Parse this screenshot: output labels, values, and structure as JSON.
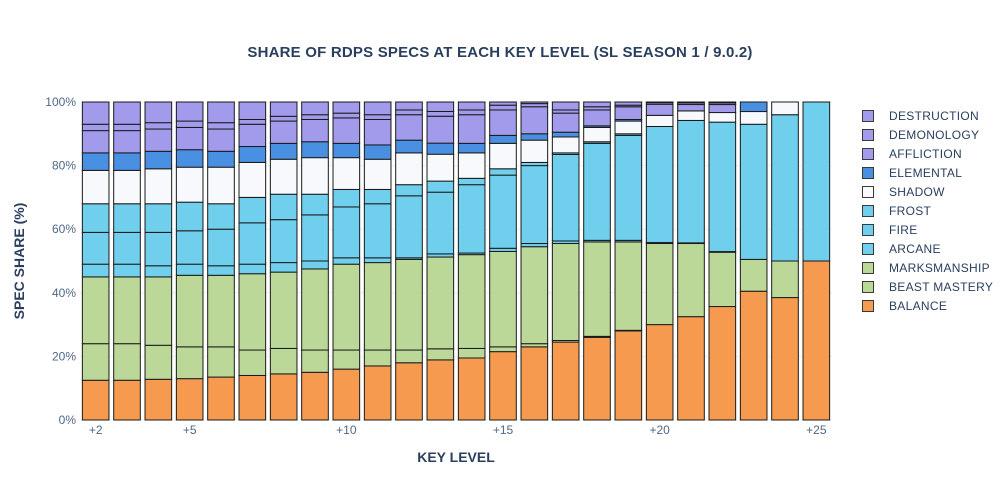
{
  "chart_data": {
    "type": "bar",
    "stacked": "percent",
    "title": "SHARE OF RDPS SPECS AT EACH KEY LEVEL (SL SEASON 1 / 9.0.2)",
    "xlabel": "KEY LEVEL",
    "ylabel": "SPEC SHARE (%)",
    "ylim": [
      0,
      100
    ],
    "y_ticks": [
      "0%",
      "20%",
      "40%",
      "60%",
      "80%",
      "100%"
    ],
    "categories": [
      2,
      3,
      4,
      5,
      6,
      7,
      8,
      9,
      10,
      11,
      12,
      13,
      14,
      15,
      16,
      17,
      18,
      19,
      20,
      21,
      22,
      23,
      24,
      25
    ],
    "x_ticks": [
      {
        "value": 2,
        "label": "+2"
      },
      {
        "value": 5,
        "label": "+5"
      },
      {
        "value": 10,
        "label": "+10"
      },
      {
        "value": 15,
        "label": "+15"
      },
      {
        "value": 20,
        "label": "+20"
      },
      {
        "value": 25,
        "label": "+25"
      }
    ],
    "legend_position": "right",
    "series": [
      {
        "name": "BALANCE",
        "color": "#f59a4e",
        "values": [
          12.5,
          12.5,
          12.8,
          13.0,
          13.5,
          14.0,
          14.5,
          15.0,
          16.0,
          17.0,
          18.0,
          19.0,
          19.5,
          21.5,
          23.0,
          24.5,
          26.0,
          28.0,
          30.0,
          32.5,
          35.5,
          40.5,
          38.5,
          50.0
        ]
      },
      {
        "name": "BEAST MASTERY",
        "color": "#bcd898",
        "values": [
          11.5,
          11.5,
          10.7,
          10.0,
          9.5,
          8.0,
          8.0,
          7.0,
          6.0,
          5.0,
          4.0,
          3.5,
          3.0,
          1.5,
          1.0,
          0.5,
          0.3,
          0.2,
          0,
          0,
          0,
          0,
          0,
          0
        ]
      },
      {
        "name": "MARKSMANSHIP",
        "color": "#bcd898",
        "values": [
          21.0,
          21.0,
          21.5,
          22.5,
          22.5,
          24.0,
          24.0,
          25.5,
          27.0,
          27.5,
          28.5,
          29.0,
          29.5,
          30.0,
          30.5,
          30.5,
          29.7,
          27.8,
          25.5,
          23.0,
          17.0,
          10.0,
          11.5,
          0
        ]
      },
      {
        "name": "ARCANE",
        "color": "#6fcfec",
        "values": [
          4.0,
          4.0,
          3.5,
          3.5,
          3.0,
          3.0,
          3.0,
          2.5,
          2.0,
          1.5,
          0.5,
          1.0,
          0.5,
          1.0,
          1.0,
          0.8,
          0.5,
          0.5,
          0.3,
          0.2,
          0.2,
          0,
          0,
          0
        ]
      },
      {
        "name": "FIRE",
        "color": "#6fcfec",
        "values": [
          10.0,
          10.0,
          10.5,
          10.5,
          11.5,
          13.0,
          13.5,
          14.5,
          16.0,
          17.0,
          19.5,
          19.5,
          21.5,
          23.0,
          24.5,
          27.2,
          30.5,
          33.0,
          36.5,
          38.5,
          40.5,
          42.5,
          46.0,
          50.0
        ]
      },
      {
        "name": "FROST",
        "color": "#6fcfec",
        "values": [
          9.0,
          9.0,
          9.0,
          9.0,
          8.0,
          8.0,
          8.0,
          6.5,
          5.5,
          4.5,
          3.5,
          3.5,
          2.0,
          2.0,
          1.0,
          0.5,
          0.5,
          0.5,
          0,
          0,
          0,
          0,
          0,
          0
        ]
      },
      {
        "name": "SHADOW",
        "color": "#f8f9fc",
        "values": [
          10.5,
          10.5,
          11.0,
          11.0,
          11.5,
          11.0,
          11.0,
          11.5,
          10.0,
          9.5,
          10.0,
          8.5,
          8.0,
          8.0,
          7.0,
          5.0,
          4.5,
          4.0,
          3.5,
          3.0,
          3.0,
          4.0,
          4.0,
          0
        ]
      },
      {
        "name": "ELEMENTAL",
        "color": "#4a90e2",
        "values": [
          5.5,
          5.5,
          5.5,
          5.5,
          5.0,
          5.0,
          5.0,
          5.0,
          4.5,
          4.5,
          4.0,
          3.5,
          3.0,
          2.5,
          2.0,
          1.5,
          0.5,
          0.5,
          0,
          0,
          0,
          3.0,
          0,
          0
        ]
      },
      {
        "name": "AFFLICTION",
        "color": "#a29bec",
        "values": [
          7.0,
          7.0,
          7.0,
          7.0,
          7.0,
          7.0,
          7.0,
          7.0,
          8.0,
          8.0,
          8.0,
          8.5,
          9.0,
          8.0,
          8.5,
          6.0,
          5.0,
          4.0,
          3.5,
          2.0,
          2.5,
          0,
          0,
          0
        ]
      },
      {
        "name": "DEMONOLOGY",
        "color": "#a29bec",
        "values": [
          2.0,
          2.0,
          2.0,
          2.0,
          2.0,
          1.5,
          1.5,
          1.5,
          1.5,
          1.5,
          1.5,
          1.5,
          1.5,
          1.5,
          1.0,
          1.0,
          1.0,
          0.5,
          0.5,
          0.5,
          0.5,
          0,
          0,
          0
        ]
      },
      {
        "name": "DESTRUCTION",
        "color": "#a29bec",
        "values": [
          7.0,
          7.0,
          6.5,
          6.0,
          6.5,
          5.5,
          4.5,
          4.0,
          3.5,
          4.0,
          2.5,
          3.0,
          2.5,
          1.0,
          0.5,
          2.5,
          1.5,
          1.0,
          0.2,
          0.3,
          0.3,
          0,
          0,
          0
        ]
      }
    ]
  }
}
